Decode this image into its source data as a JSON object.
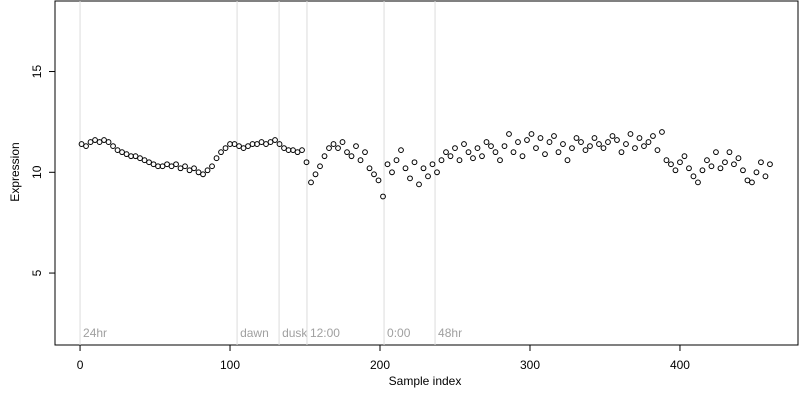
{
  "chart_data": {
    "type": "scatter",
    "xlabel": "Sample index",
    "ylabel": "Expression",
    "xlim": [
      -16.7,
      478.7
    ],
    "ylim": [
      1.43,
      18.5
    ],
    "xticks": [
      0,
      100,
      200,
      300,
      400
    ],
    "yticks": [
      5,
      10,
      15
    ],
    "color": "#000000",
    "annotations": [
      {
        "x": 0,
        "label": "24hr"
      },
      {
        "x": 104.7,
        "label": "dawn"
      },
      {
        "x": 132.7,
        "label": "dusk"
      },
      {
        "x": 151.3,
        "label": "12:00"
      },
      {
        "x": 202.7,
        "label": "0:00"
      },
      {
        "x": 236.7,
        "label": "48hr"
      }
    ],
    "x": [
      1,
      4,
      7,
      10,
      13,
      16,
      19,
      22,
      25,
      28,
      31,
      34,
      37,
      40,
      43,
      46,
      49,
      52,
      55,
      58,
      61,
      64,
      67,
      70,
      73,
      76,
      79,
      82,
      85,
      88,
      91,
      94,
      97,
      100,
      103,
      106,
      109,
      112,
      115,
      118,
      121,
      124,
      127,
      130,
      133,
      136,
      139,
      142,
      145,
      148,
      151,
      154,
      157,
      160,
      163,
      166,
      169,
      172,
      175,
      178,
      181,
      184,
      187,
      190,
      193,
      196,
      199,
      202,
      205,
      208,
      211,
      214,
      217,
      220,
      223,
      226,
      229,
      232,
      235,
      238,
      241,
      244,
      247,
      250,
      253,
      256,
      259,
      262,
      265,
      268,
      271,
      274,
      277,
      280,
      283,
      286,
      289,
      292,
      295,
      298,
      301,
      304,
      307,
      310,
      313,
      316,
      319,
      322,
      325,
      328,
      331,
      334,
      337,
      340,
      343,
      346,
      349,
      352,
      355,
      358,
      361,
      364,
      367,
      370,
      373,
      376,
      379,
      382,
      385,
      388,
      391,
      394,
      397,
      400,
      403,
      406,
      409,
      412,
      415,
      418,
      421,
      424,
      427,
      430,
      433,
      436,
      439,
      442,
      445,
      448,
      451,
      454,
      457,
      460
    ],
    "values": [
      11.4,
      11.3,
      11.5,
      11.6,
      11.5,
      11.6,
      11.5,
      11.3,
      11.1,
      11.0,
      10.9,
      10.8,
      10.8,
      10.7,
      10.6,
      10.5,
      10.4,
      10.3,
      10.3,
      10.4,
      10.3,
      10.4,
      10.2,
      10.3,
      10.1,
      10.2,
      10.0,
      9.9,
      10.1,
      10.3,
      10.7,
      11.0,
      11.2,
      11.4,
      11.4,
      11.3,
      11.2,
      11.3,
      11.4,
      11.4,
      11.5,
      11.4,
      11.5,
      11.6,
      11.4,
      11.2,
      11.1,
      11.1,
      11.0,
      11.1,
      10.5,
      9.5,
      9.9,
      10.3,
      10.8,
      11.2,
      11.4,
      11.2,
      11.5,
      11.0,
      10.8,
      11.3,
      10.6,
      11.0,
      10.2,
      9.9,
      9.6,
      8.8,
      10.4,
      10.0,
      10.6,
      11.1,
      10.2,
      9.7,
      10.5,
      9.4,
      10.2,
      9.8,
      10.4,
      10.0,
      10.6,
      11.0,
      10.8,
      11.2,
      10.6,
      11.4,
      11.0,
      10.7,
      11.2,
      10.8,
      11.5,
      11.3,
      11.0,
      10.6,
      11.3,
      11.9,
      11.0,
      11.5,
      10.8,
      11.6,
      11.9,
      11.2,
      11.7,
      10.9,
      11.5,
      11.8,
      11.0,
      11.4,
      10.6,
      11.2,
      11.7,
      11.5,
      11.1,
      11.3,
      11.7,
      11.4,
      11.2,
      11.5,
      11.8,
      11.6,
      11.0,
      11.4,
      11.9,
      11.2,
      11.7,
      11.3,
      11.5,
      11.8,
      11.1,
      12.0,
      10.6,
      10.4,
      10.1,
      10.5,
      10.8,
      10.2,
      9.8,
      9.5,
      10.1,
      10.6,
      10.3,
      11.0,
      10.2,
      10.5,
      11.0,
      10.4,
      10.7,
      10.1,
      9.6,
      9.5,
      10.0,
      10.5,
      9.8,
      10.4
    ]
  }
}
